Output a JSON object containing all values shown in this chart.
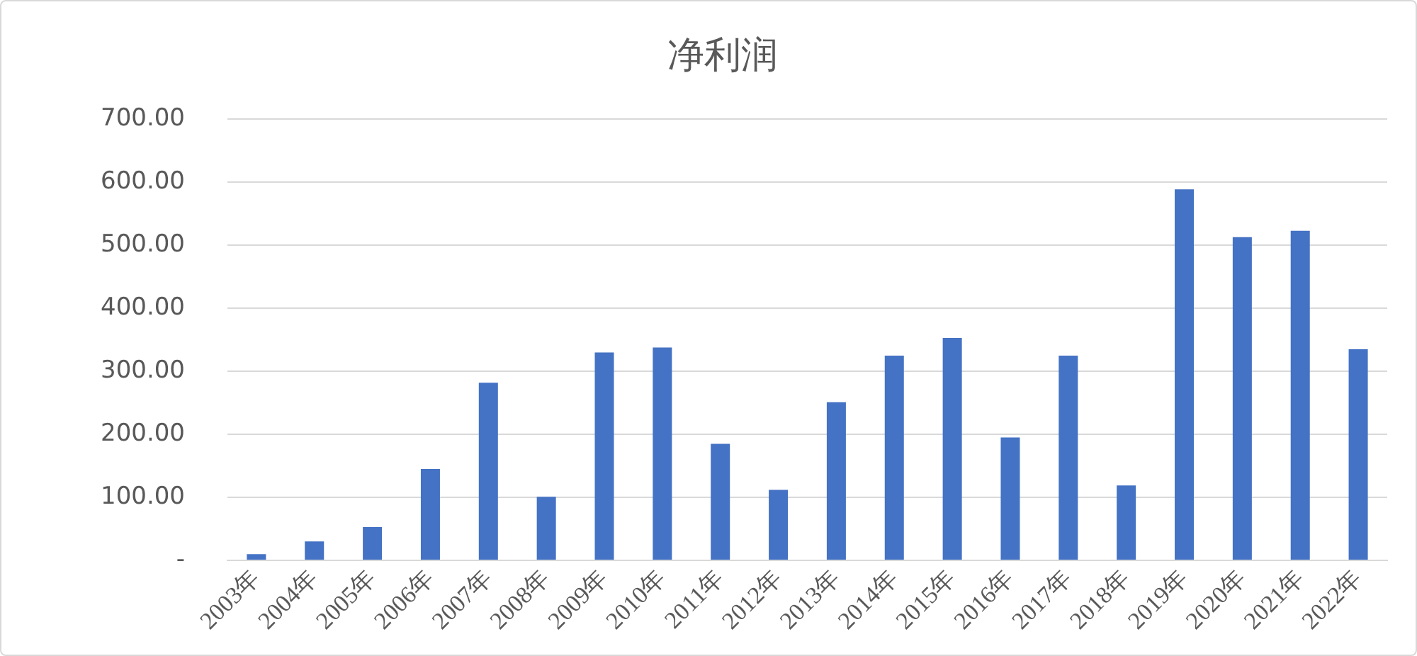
{
  "chart_data": {
    "type": "bar",
    "title": "净利润",
    "categories": [
      "2003年",
      "2004年",
      "2005年",
      "2006年",
      "2007年",
      "2008年",
      "2009年",
      "2010年",
      "2011年",
      "2012年",
      "2013年",
      "2014年",
      "2015年",
      "2016年",
      "2017年",
      "2018年",
      "2019年",
      "2020年",
      "2021年",
      "2022年"
    ],
    "values": [
      10,
      30,
      53,
      145,
      282,
      101,
      330,
      338,
      185,
      112,
      251,
      325,
      353,
      195,
      325,
      119,
      589,
      513,
      523,
      335
    ],
    "color": "#4472c4",
    "ylim": [
      0,
      700
    ],
    "yticks": [
      {
        "value": 0,
        "label": "-"
      },
      {
        "value": 100,
        "label": "100.00"
      },
      {
        "value": 200,
        "label": "200.00"
      },
      {
        "value": 300,
        "label": "300.00"
      },
      {
        "value": 400,
        "label": "400.00"
      },
      {
        "value": 500,
        "label": "500.00"
      },
      {
        "value": 600,
        "label": "600.00"
      },
      {
        "value": 700,
        "label": "700.00"
      }
    ],
    "grid": "y",
    "legend": false
  }
}
